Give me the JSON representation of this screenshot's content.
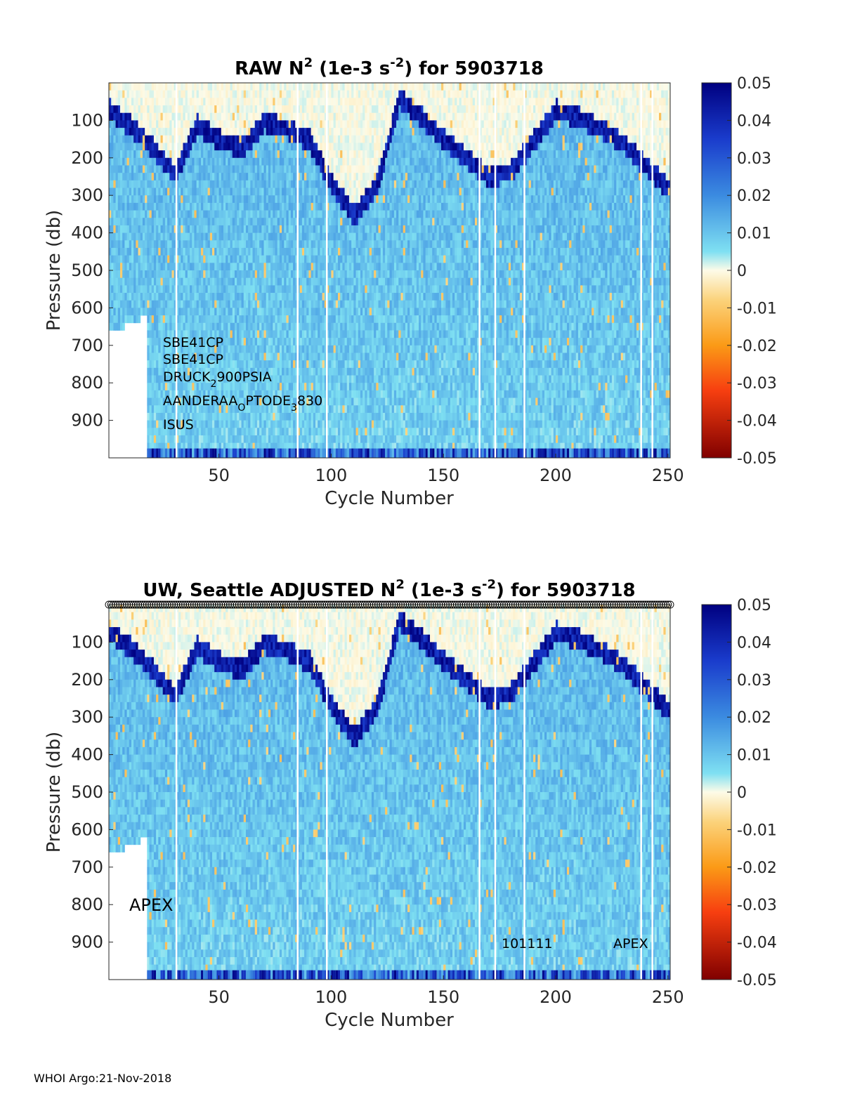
{
  "footer": "WHOI Argo:21-Nov-2018",
  "chart_data": [
    {
      "type": "heatmap",
      "title_parts": [
        "RAW N",
        "2",
        " (1e-3 s",
        "-2",
        ") for 5903718"
      ],
      "xlabel": "Cycle Number",
      "ylabel": "Pressure (db)",
      "xlim": [
        1,
        251
      ],
      "ylim": [
        0,
        1000
      ],
      "y_reversed": true,
      "xticks": [
        50,
        100,
        150,
        200,
        250
      ],
      "yticks": [
        100,
        200,
        300,
        400,
        500,
        600,
        700,
        800,
        900
      ],
      "colorbar": {
        "min": -0.05,
        "max": 0.05,
        "ticks": [
          "0.05",
          "0.04",
          "0.03",
          "0.02",
          "0.01",
          "0",
          "-0.01",
          "-0.02",
          "-0.03",
          "-0.04",
          "-0.05"
        ]
      },
      "annotations": [
        "SBE41CP",
        "SBE41CP",
        "DRUCK",
        "2",
        "900PSIA",
        "AANDERAA",
        "O",
        "PTODE",
        "3",
        "830",
        "ISUS"
      ],
      "gap_cycles": [
        31,
        85,
        98,
        166,
        173,
        186,
        238,
        243
      ],
      "mixed_layer_depth": [
        [
          1,
          70
        ],
        [
          10,
          110
        ],
        [
          20,
          170
        ],
        [
          30,
          240
        ],
        [
          40,
          110
        ],
        [
          50,
          150
        ],
        [
          60,
          170
        ],
        [
          70,
          100
        ],
        [
          80,
          120
        ],
        [
          90,
          150
        ],
        [
          100,
          270
        ],
        [
          110,
          350
        ],
        [
          120,
          270
        ],
        [
          130,
          40
        ],
        [
          140,
          90
        ],
        [
          150,
          150
        ],
        [
          160,
          200
        ],
        [
          170,
          250
        ],
        [
          180,
          230
        ],
        [
          190,
          150
        ],
        [
          200,
          70
        ],
        [
          210,
          90
        ],
        [
          220,
          120
        ],
        [
          230,
          160
        ],
        [
          240,
          220
        ],
        [
          250,
          280
        ]
      ]
    },
    {
      "type": "heatmap",
      "title_parts": [
        "UW, Seattle  ADJUSTED N",
        "2",
        " (1e-3 s",
        "-2",
        ") for 5903718"
      ],
      "xlabel": "Cycle Number",
      "ylabel": "Pressure (db)",
      "xlim": [
        1,
        251
      ],
      "ylim": [
        0,
        1000
      ],
      "y_reversed": true,
      "xticks": [
        50,
        100,
        150,
        200,
        250
      ],
      "yticks": [
        100,
        200,
        300,
        400,
        500,
        600,
        700,
        800,
        900
      ],
      "colorbar": {
        "min": -0.05,
        "max": 0.05,
        "ticks": [
          "0.05",
          "0.04",
          "0.03",
          "0.02",
          "0.01",
          "0",
          "-0.01",
          "-0.02",
          "-0.03",
          "-0.04",
          "-0.05"
        ]
      },
      "annotations": [
        "APEX",
        "101111",
        "APEX"
      ],
      "qc_marker_row": true,
      "gap_cycles": [
        31,
        85,
        98,
        166,
        173,
        186,
        238,
        243
      ],
      "mixed_layer_depth": [
        [
          1,
          70
        ],
        [
          10,
          110
        ],
        [
          20,
          170
        ],
        [
          30,
          240
        ],
        [
          40,
          110
        ],
        [
          50,
          150
        ],
        [
          60,
          170
        ],
        [
          70,
          100
        ],
        [
          80,
          120
        ],
        [
          90,
          150
        ],
        [
          100,
          270
        ],
        [
          110,
          350
        ],
        [
          120,
          270
        ],
        [
          130,
          40
        ],
        [
          140,
          90
        ],
        [
          150,
          150
        ],
        [
          160,
          200
        ],
        [
          170,
          250
        ],
        [
          180,
          230
        ],
        [
          190,
          150
        ],
        [
          200,
          70
        ],
        [
          210,
          90
        ],
        [
          220,
          120
        ],
        [
          230,
          160
        ],
        [
          240,
          220
        ],
        [
          250,
          280
        ]
      ]
    }
  ]
}
